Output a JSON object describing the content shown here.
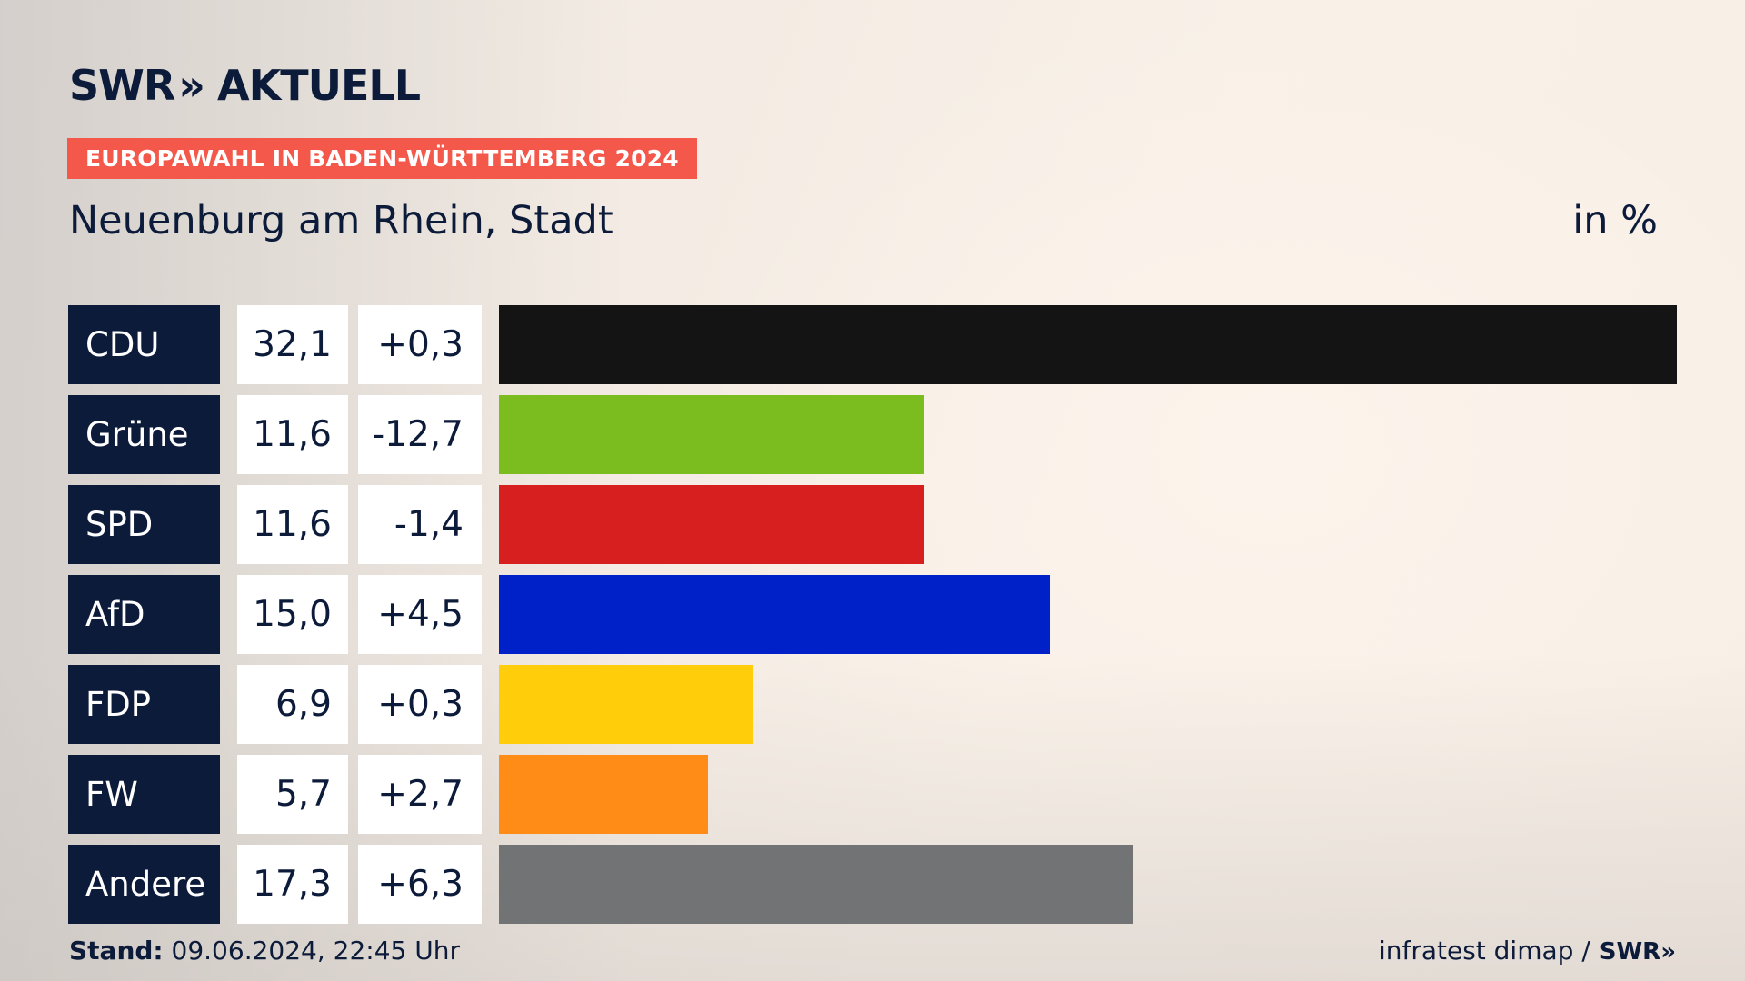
{
  "brand": {
    "logo_text": "SWR",
    "logo_chevrons": "»",
    "logo_subtitle": "AKTUELL"
  },
  "badge": {
    "text": "EUROPAWAHL IN BADEN-WÜRTTEMBERG 2024",
    "color": "#f4584a"
  },
  "header": {
    "region": "Neuenburg am Rhein, Stadt",
    "unit": "in %"
  },
  "chart_data": {
    "type": "bar",
    "orientation": "horizontal",
    "title": "Neuenburg am Rhein, Stadt",
    "unit": "in %",
    "categories": [
      "CDU",
      "Grüne",
      "SPD",
      "AfD",
      "FDP",
      "FW",
      "Andere"
    ],
    "values": [
      32.1,
      11.6,
      11.6,
      15.0,
      6.9,
      5.7,
      17.3
    ],
    "value_labels": [
      "32,1",
      "11,6",
      "11,6",
      "15,0",
      "6,9",
      "5,7",
      "17,3"
    ],
    "change_labels": [
      "+0,3",
      "-12,7",
      "-1,4",
      "+4,5",
      "+0,3",
      "+2,7",
      "+6,3"
    ],
    "changes": [
      0.3,
      -12.7,
      -1.4,
      4.5,
      0.3,
      2.7,
      6.3
    ],
    "colors": [
      "#141414",
      "#7bbd1e",
      "#d81f20",
      "#0021c7",
      "#ffcd0a",
      "#ff8c17",
      "#727375"
    ],
    "xlim": [
      0,
      32.1
    ]
  },
  "footer": {
    "stand_label": "Stand:",
    "stand_value": "09.06.2024, 22:45 Uhr",
    "source": "infratest dimap /",
    "source_logo": "SWR»"
  }
}
